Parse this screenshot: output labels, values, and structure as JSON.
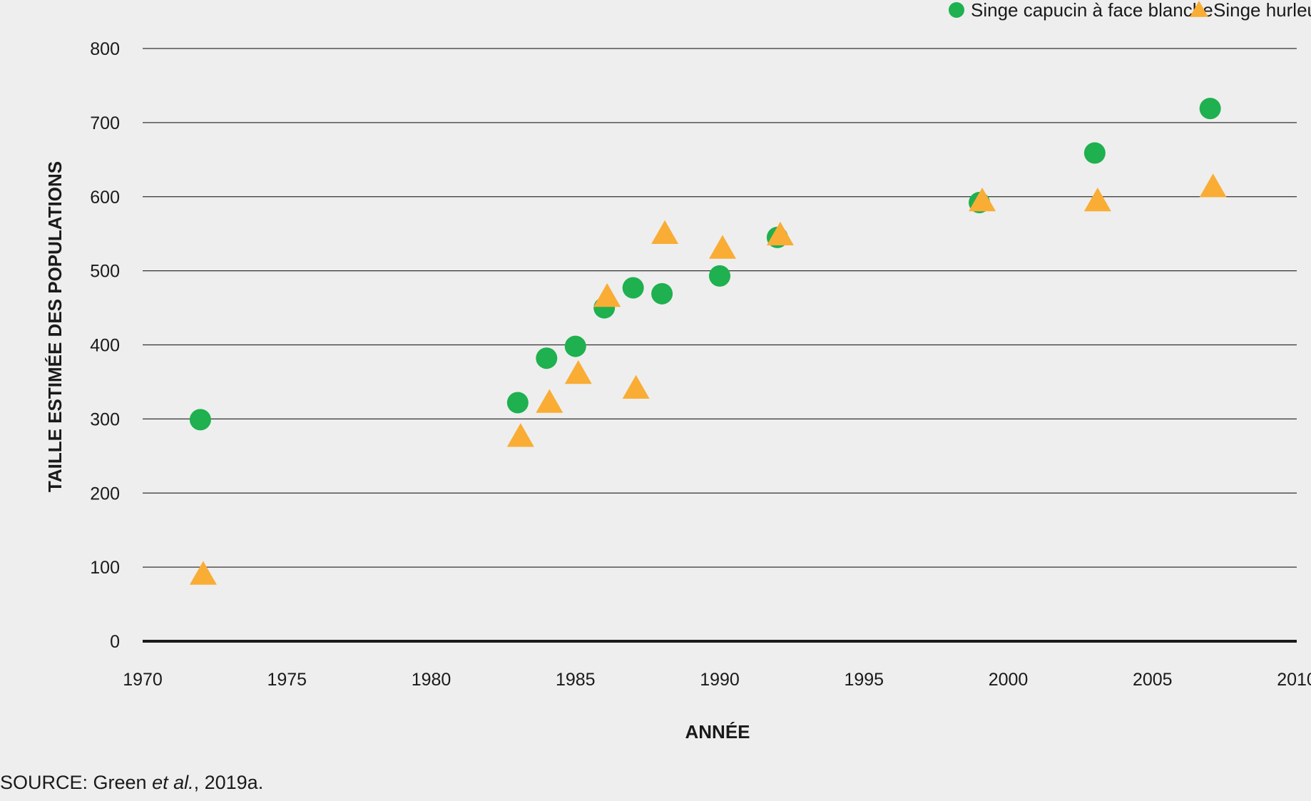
{
  "chart_data": {
    "type": "scatter",
    "title": "",
    "xlabel": "ANNÉE",
    "ylabel": "TAILLE ESTIMÉE DES POPULATIONS",
    "xlim": [
      1970,
      2010
    ],
    "ylim": [
      0,
      800
    ],
    "xticks": [
      1970,
      1975,
      1980,
      1985,
      1990,
      1995,
      2000,
      2005,
      2010
    ],
    "yticks": [
      0,
      100,
      200,
      300,
      400,
      500,
      600,
      700,
      800
    ],
    "grid": true,
    "legend_position": "top-right",
    "series": [
      {
        "name": "Singe capucin à face blanche",
        "marker": "circle",
        "color": "#1fb04f",
        "points": [
          {
            "x": 1972,
            "y": 299
          },
          {
            "x": 1983,
            "y": 322
          },
          {
            "x": 1984,
            "y": 382
          },
          {
            "x": 1985,
            "y": 398
          },
          {
            "x": 1986,
            "y": 450
          },
          {
            "x": 1987,
            "y": 477
          },
          {
            "x": 1988,
            "y": 469
          },
          {
            "x": 1990,
            "y": 493
          },
          {
            "x": 1992,
            "y": 545
          },
          {
            "x": 1999,
            "y": 592
          },
          {
            "x": 2003,
            "y": 659
          },
          {
            "x": 2007,
            "y": 719
          }
        ]
      },
      {
        "name": "Singe hurleur",
        "marker": "triangle",
        "color": "#f9ad35",
        "points": [
          {
            "x": 1972,
            "y": 90
          },
          {
            "x": 1983,
            "y": 276
          },
          {
            "x": 1984,
            "y": 322
          },
          {
            "x": 1985,
            "y": 361
          },
          {
            "x": 1986,
            "y": 465
          },
          {
            "x": 1987,
            "y": 341
          },
          {
            "x": 1988,
            "y": 550
          },
          {
            "x": 1990,
            "y": 530
          },
          {
            "x": 1992,
            "y": 548
          },
          {
            "x": 1999,
            "y": 594
          },
          {
            "x": 2003,
            "y": 594
          },
          {
            "x": 2007,
            "y": 613
          }
        ]
      }
    ]
  },
  "source": {
    "prefix": "SOURCE: Green ",
    "italic": "et al.",
    "suffix": ", 2019a."
  }
}
